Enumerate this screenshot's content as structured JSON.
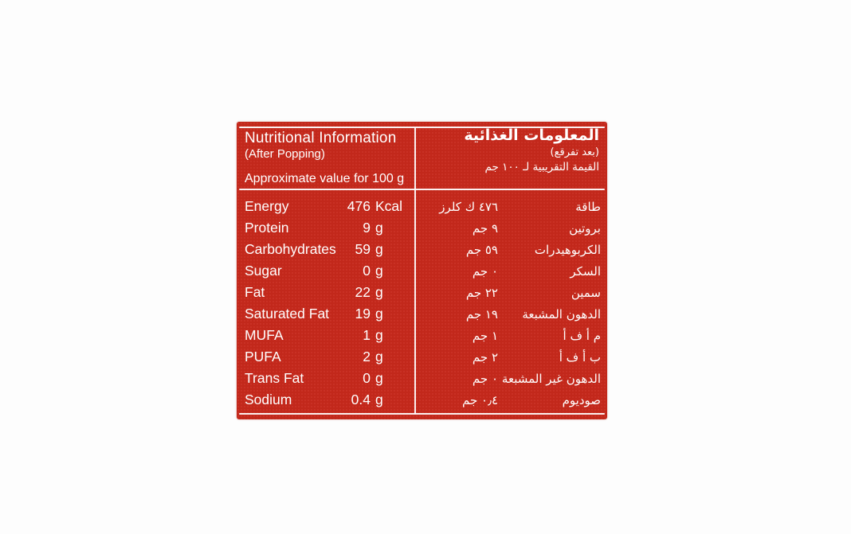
{
  "label": {
    "colors": {
      "label_bg": "#c8291c",
      "text": "#ffffff",
      "rule": "#ffffff",
      "page_bg": "#fdfdfd"
    },
    "header": {
      "en": {
        "title": "Nutritional Information",
        "subtitle": "(After Popping)",
        "note": "Approximate value for 100 g"
      },
      "ar": {
        "title": "المعلومات الغذائية",
        "subtitle": "(بعد تفرقع)",
        "note": "القيمة التقريبية لـ ١٠٠ جم"
      }
    },
    "rows": [
      {
        "en_name": "Energy",
        "en_num": "476",
        "en_unit": "Kcal",
        "ar_value": "٤٧٦ ك كلرز",
        "ar_name": "طاقة"
      },
      {
        "en_name": "Protein",
        "en_num": "9",
        "en_unit": "g",
        "ar_value": "٩ جم",
        "ar_name": "بروتين"
      },
      {
        "en_name": "Carbohydrates",
        "en_num": "59",
        "en_unit": "g",
        "ar_value": "٥٩ جم",
        "ar_name": "الكربوهيدرات"
      },
      {
        "en_name": "Sugar",
        "en_num": "0",
        "en_unit": "g",
        "ar_value": "٠ جم",
        "ar_name": "السكر"
      },
      {
        "en_name": "Fat",
        "en_num": "22",
        "en_unit": "g",
        "ar_value": "٢٢ جم",
        "ar_name": "سمين"
      },
      {
        "en_name": "Saturated Fat",
        "en_num": "19",
        "en_unit": "g",
        "ar_value": "١٩ جم",
        "ar_name": "الدهون المشبعة"
      },
      {
        "en_name": "MUFA",
        "en_num": "1",
        "en_unit": "g",
        "ar_value": "١ جم",
        "ar_name": "م أ ف أ"
      },
      {
        "en_name": "PUFA",
        "en_num": "2",
        "en_unit": "g",
        "ar_value": "٢ جم",
        "ar_name": "ب أ ف أ"
      },
      {
        "en_name": "Trans Fat",
        "en_num": "0",
        "en_unit": "g",
        "ar_value": "٠ جم",
        "ar_name": "الدهون غير المشبعة"
      },
      {
        "en_name": "Sodium",
        "en_num": "0.4",
        "en_unit": "g",
        "ar_value": "٠٫٤ جم",
        "ar_name": "صوديوم"
      }
    ]
  }
}
